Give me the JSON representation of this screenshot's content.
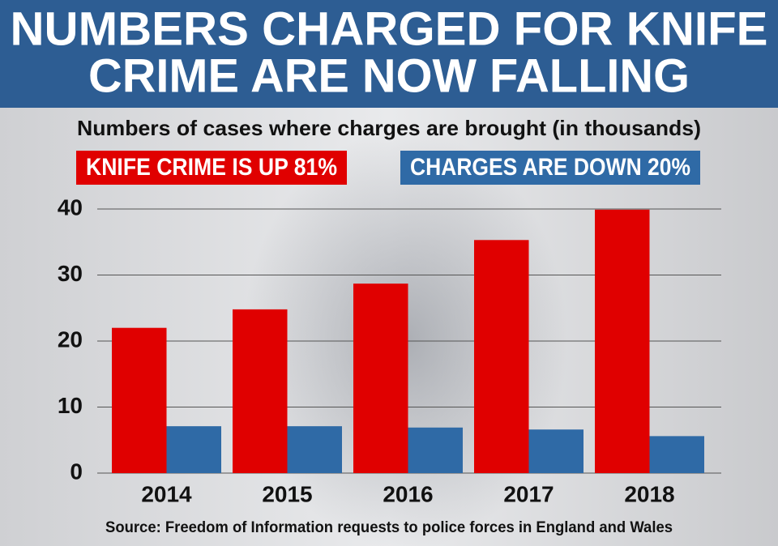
{
  "chart_data": {
    "type": "bar",
    "title": [
      "NUMBERS CHARGED FOR KNIFE",
      "CRIME ARE NOW FALLING"
    ],
    "subtitle": "Numbers of cases where charges are brought (in thousands)",
    "categories": [
      "2014",
      "2015",
      "2016",
      "2017",
      "2018"
    ],
    "series": [
      {
        "name": "KNIFE CRIME IS UP 81%",
        "color": "#e00000",
        "values": [
          22,
          24.8,
          28.7,
          35.3,
          39.9
        ]
      },
      {
        "name": "CHARGES ARE DOWN 20%",
        "color": "#2f6aa6",
        "values": [
          7.1,
          7.1,
          6.9,
          6.6,
          5.6
        ]
      }
    ],
    "ylim": [
      0,
      40
    ],
    "yticks": [
      0,
      10,
      20,
      30,
      40
    ],
    "grid": true,
    "source": "Source: Freedom of Information requests to police forces in England and Wales"
  }
}
